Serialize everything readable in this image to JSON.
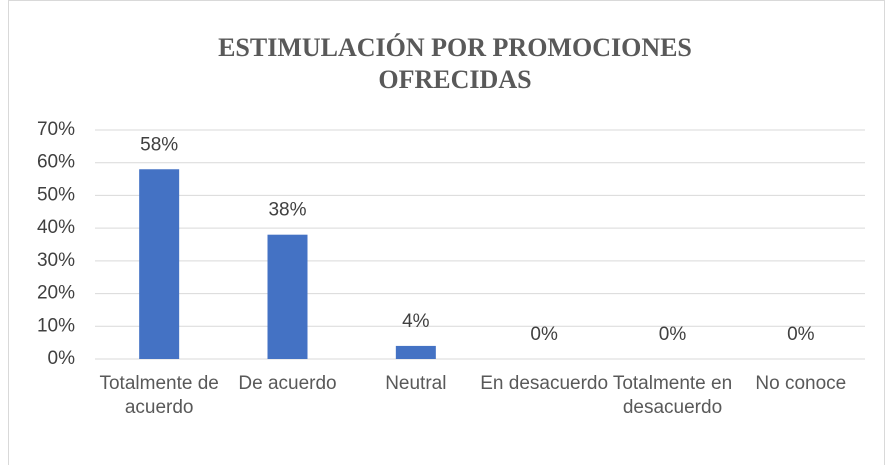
{
  "chart_data": {
    "type": "bar",
    "title": "ESTIMULACIÓN POR PROMOCIONES OFRECIDAS",
    "categories": [
      "Totalmente de acuerdo",
      "De acuerdo",
      "Neutral",
      "En desacuerdo",
      "Totalmente en desacuerdo",
      "No conoce"
    ],
    "values": [
      58,
      38,
      4,
      0,
      0,
      0
    ],
    "value_labels": [
      "58%",
      "38%",
      "4%",
      "0%",
      "0%",
      "0%"
    ],
    "color": "#4472c4",
    "ylim": [
      0,
      70
    ],
    "yticks": [
      {
        "value": 0,
        "label": "0%"
      },
      {
        "value": 10,
        "label": "10%"
      },
      {
        "value": 20,
        "label": "20%"
      },
      {
        "value": 30,
        "label": "30%"
      },
      {
        "value": 40,
        "label": "40%"
      },
      {
        "value": 50,
        "label": "50%"
      },
      {
        "value": 60,
        "label": "60%"
      },
      {
        "value": 70,
        "label": "70%"
      }
    ],
    "grid": true
  }
}
